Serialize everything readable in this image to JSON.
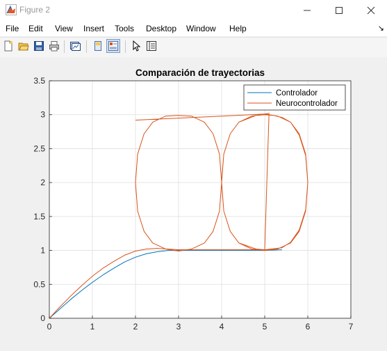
{
  "window": {
    "title": "Figure 2"
  },
  "menu": [
    "File",
    "Edit",
    "View",
    "Insert",
    "Tools",
    "Desktop",
    "Window",
    "Help"
  ],
  "toolbar": {
    "buttons": [
      "new-figure",
      "open-file",
      "save",
      "print",
      "link-plot",
      "hide-plot-tools",
      "show-plot-tools-dock",
      "edit-plot-pointer",
      "open-property-inspector"
    ]
  },
  "colors": {
    "controlador": "#0072BD",
    "neurocontrolador": "#D95319"
  },
  "chart_data": {
    "type": "line",
    "title": "Comparación de trayectorias",
    "xlabel": "",
    "ylabel": "",
    "xlim": [
      0,
      7
    ],
    "ylim": [
      0,
      3.5
    ],
    "xticks": [
      "0",
      "1",
      "2",
      "3",
      "4",
      "5",
      "6",
      "7"
    ],
    "yticks": [
      "0",
      "0.5",
      "1",
      "1.5",
      "2",
      "2.5",
      "3",
      "3.5"
    ],
    "grid": true,
    "legend_position": "top-right",
    "series": [
      {
        "name": "Controlador",
        "x": [
          0,
          0.25,
          0.5,
          0.75,
          1,
          1.25,
          1.5,
          1.75,
          2,
          2.25,
          2.5,
          2.75,
          3,
          3.5,
          4,
          4.5,
          5,
          5.4
        ],
        "y": [
          0,
          0.14,
          0.28,
          0.41,
          0.53,
          0.64,
          0.74,
          0.83,
          0.9,
          0.95,
          0.98,
          1.0,
          1.0,
          1.0,
          1.0,
          1.0,
          1.0,
          1.01
        ]
      },
      {
        "name": "Neurocontrolador",
        "x": [
          0,
          0.25,
          0.5,
          0.75,
          1,
          1.25,
          1.5,
          1.75,
          2,
          2.25,
          2.5,
          2.75,
          3,
          3.5,
          4,
          4.5,
          5,
          5.4,
          5.6,
          5.8,
          5.95,
          6.0,
          5.95,
          5.8,
          5.6,
          5.3,
          5.0,
          4.7,
          4.4,
          4.2,
          4.05,
          4.0,
          4.05,
          4.2,
          4.4,
          4.7,
          5.0,
          5.3,
          5.6,
          5.8,
          5.95,
          6.0,
          5.95,
          5.8,
          5.6,
          5.4,
          5.2,
          5.0,
          4.8,
          4.4,
          4.2,
          4.05,
          4.0,
          3.95,
          3.8,
          3.6,
          3.3,
          3.0,
          2.7,
          2.4,
          2.2,
          2.05,
          2.0,
          2.05,
          2.2,
          2.4,
          2.7,
          3.0,
          3.3,
          3.6,
          3.8,
          3.95,
          4.0,
          4.05,
          4.2,
          4.4,
          4.8,
          5.0,
          5.1,
          5.0,
          4.0,
          3.0,
          2.0
        ],
        "y": [
          0,
          0.17,
          0.33,
          0.48,
          0.62,
          0.74,
          0.84,
          0.93,
          0.99,
          1.02,
          1.03,
          1.02,
          1.01,
          1.01,
          1.01,
          1.01,
          1.01,
          1.04,
          1.12,
          1.3,
          1.6,
          2.0,
          2.4,
          2.7,
          2.89,
          2.98,
          3.01,
          2.98,
          2.89,
          2.72,
          2.42,
          2.0,
          1.58,
          1.28,
          1.11,
          1.02,
          1.0,
          1.02,
          1.11,
          1.28,
          1.58,
          2.0,
          2.42,
          2.72,
          2.89,
          2.96,
          2.99,
          3.0,
          2.99,
          2.89,
          2.72,
          2.42,
          2.0,
          1.58,
          1.28,
          1.11,
          1.02,
          0.99,
          1.02,
          1.11,
          1.28,
          1.58,
          2.0,
          2.42,
          2.72,
          2.89,
          2.98,
          2.99,
          2.98,
          2.89,
          2.72,
          2.42,
          2.0,
          1.58,
          1.28,
          1.11,
          1.02,
          1.01,
          3.02,
          3.01,
          2.98,
          2.95,
          2.92
        ]
      }
    ]
  }
}
